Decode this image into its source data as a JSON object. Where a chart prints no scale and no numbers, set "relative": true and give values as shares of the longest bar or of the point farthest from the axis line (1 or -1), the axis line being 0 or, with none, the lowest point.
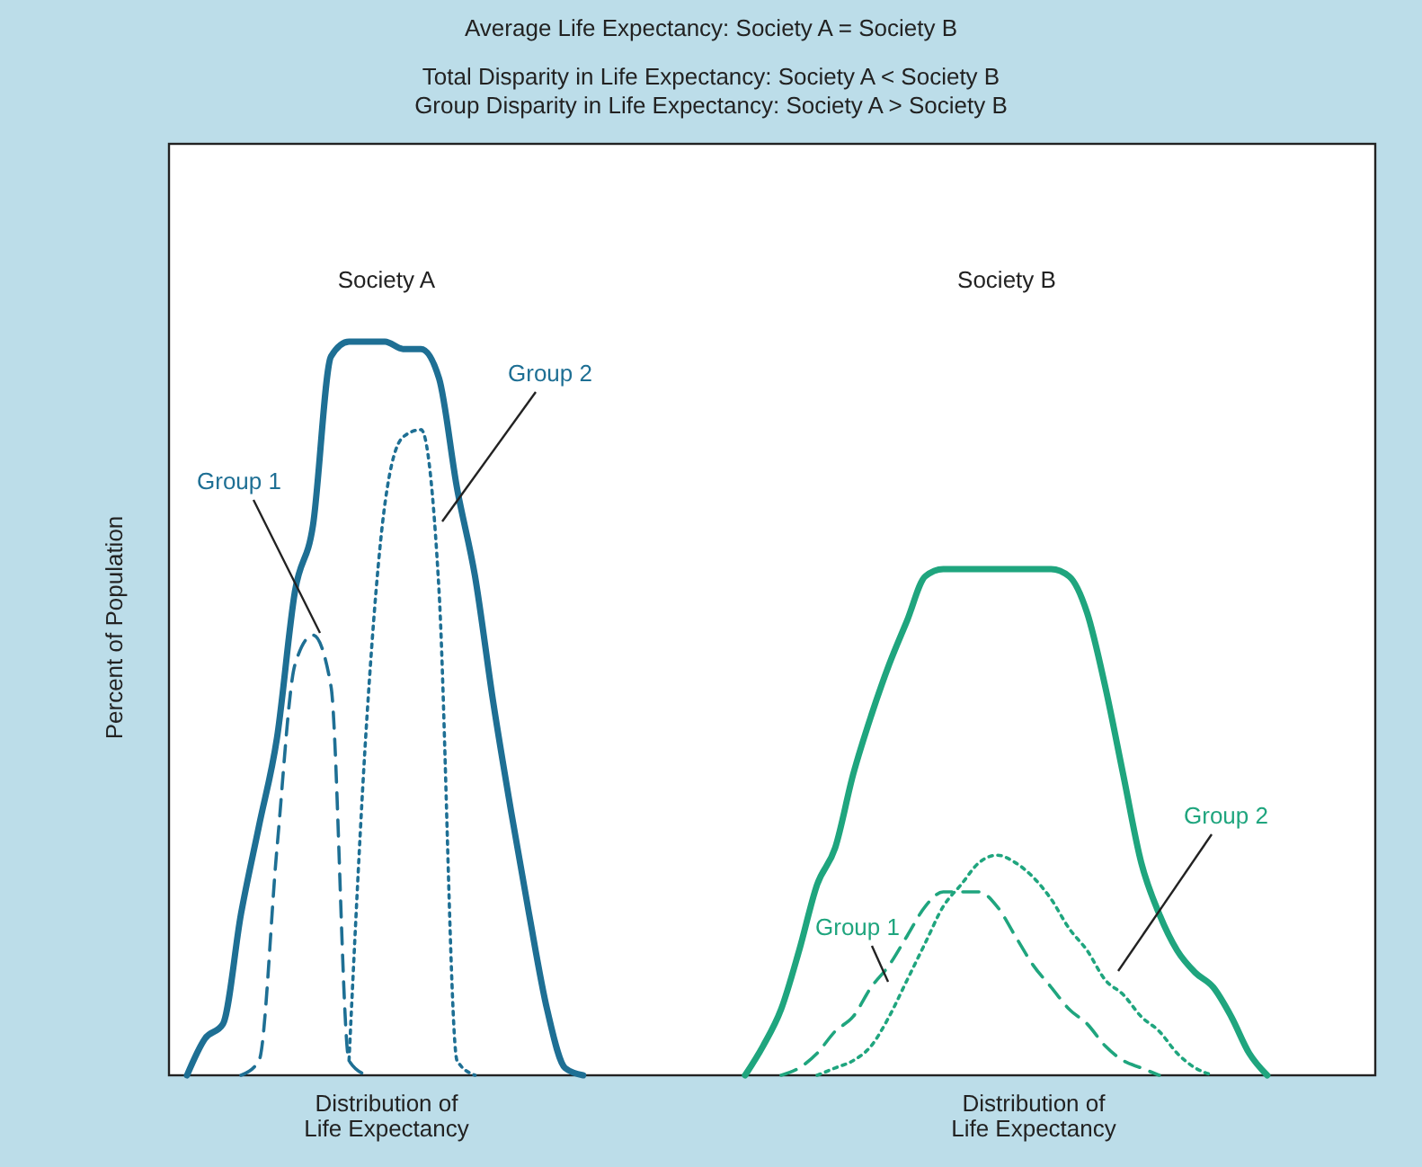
{
  "chart_data": {
    "type": "line",
    "title": "Average Life Expectancy: Society A = Society B",
    "subtitle": "Total Disparity in Life Expectancy: Society A < Society B\nGroup Disparity in Life Expectancy: Society A > Society B",
    "xlabel": "Distribution of\nLife Expectancy",
    "ylabel": "Percent of Population",
    "annotations": [
      "Society A",
      "Society B"
    ],
    "relative": true,
    "categories": [
      null,
      null,
      null,
      null,
      null,
      null,
      null,
      null,
      null,
      null,
      null,
      null,
      null,
      null,
      null,
      null,
      null,
      null,
      null,
      null,
      null,
      null,
      null,
      null,
      null,
      null,
      null,
      null,
      null,
      null,
      null,
      null,
      null,
      null,
      null,
      null,
      null,
      null,
      null,
      null,
      null,
      null,
      null,
      null,
      null,
      null,
      null,
      null,
      null,
      null,
      null,
      null,
      null,
      null,
      null,
      null,
      null,
      null,
      null,
      null,
      null,
      null,
      null,
      null,
      null,
      null,
      null,
      null
    ],
    "series": [
      {
        "color": "#1e6f94",
        "line_style": "solid",
        "values": [
          null,
          0,
          0.05,
          0.07,
          0.22,
          0.34,
          0.46,
          0.66,
          0.75,
          0.98,
          1,
          1,
          1,
          0.99,
          0.99,
          0.95,
          0.8,
          0.68,
          0.51,
          0.36,
          0.22,
          0.09,
          0.01,
          0,
          null,
          null,
          null,
          null,
          null,
          null,
          null,
          null,
          null,
          null,
          null,
          null,
          null,
          null,
          null,
          null,
          null,
          null,
          null,
          null,
          null,
          null,
          null,
          null,
          null,
          null,
          null,
          null,
          null,
          null,
          null,
          null,
          null,
          null,
          null,
          null,
          null,
          null,
          null,
          null,
          null,
          null,
          null,
          null
        ]
      },
      {
        "name": "Group 1",
        "color": "#1e6f94",
        "line_style": "dashed",
        "values": [
          null,
          null,
          null,
          null,
          0,
          0.02,
          0.31,
          0.56,
          0.6,
          0.53,
          0.02,
          0,
          null,
          null,
          null,
          null,
          null,
          null,
          null,
          null,
          null,
          null,
          null,
          null,
          null,
          null,
          null,
          null,
          null,
          null,
          null,
          null,
          null,
          null,
          null,
          null,
          null,
          null,
          null,
          null,
          null,
          null,
          null,
          null,
          null,
          null,
          null,
          null,
          null,
          null,
          null,
          null,
          null,
          null,
          null,
          null,
          null,
          null,
          null,
          null,
          null,
          null,
          null,
          null,
          null,
          null,
          null,
          null
        ]
      },
      {
        "name": "Group 2",
        "color": "#1e6f94",
        "line_style": "dotted",
        "values": [
          null,
          null,
          null,
          null,
          null,
          null,
          null,
          null,
          null,
          null,
          0.02,
          0.49,
          0.78,
          0.87,
          0.88,
          0.66,
          0.02,
          0,
          null,
          null,
          null,
          null,
          null,
          null,
          null,
          null,
          null,
          null,
          null,
          null,
          null,
          null,
          null,
          null,
          null,
          null,
          null,
          null,
          null,
          null,
          null,
          null,
          null,
          null,
          null,
          null,
          null,
          null,
          null,
          null,
          null,
          null,
          null,
          null,
          null,
          null,
          null,
          null,
          null,
          null,
          null,
          null,
          null,
          null,
          null,
          null,
          null,
          null
        ]
      },
      {
        "color": "#1fa57e",
        "line_style": "solid",
        "values": [
          null,
          null,
          null,
          null,
          null,
          null,
          null,
          null,
          null,
          null,
          null,
          null,
          null,
          null,
          null,
          null,
          null,
          null,
          null,
          null,
          null,
          null,
          null,
          null,
          null,
          null,
          null,
          null,
          null,
          null,
          null,
          null,
          0,
          0.04,
          0.09,
          0.17,
          0.26,
          0.31,
          0.41,
          0.49,
          0.56,
          0.62,
          0.68,
          0.69,
          0.69,
          0.69,
          0.69,
          0.69,
          0.69,
          0.69,
          0.68,
          0.63,
          0.53,
          0.41,
          0.29,
          0.22,
          0.17,
          0.14,
          0.12,
          0.08,
          0.03,
          0,
          null,
          null,
          null,
          null,
          null,
          null
        ]
      },
      {
        "name": "Group 1",
        "color": "#1fa57e",
        "line_style": "dashed",
        "values": [
          null,
          null,
          null,
          null,
          null,
          null,
          null,
          null,
          null,
          null,
          null,
          null,
          null,
          null,
          null,
          null,
          null,
          null,
          null,
          null,
          null,
          null,
          null,
          null,
          null,
          null,
          null,
          null,
          null,
          null,
          null,
          null,
          null,
          null,
          0,
          0.01,
          0.03,
          0.06,
          0.08,
          0.12,
          0.15,
          0.19,
          0.23,
          0.25,
          0.25,
          0.25,
          0.23,
          0.19,
          0.15,
          0.12,
          0.09,
          0.07,
          0.04,
          0.02,
          0.01,
          0,
          null,
          null,
          null,
          null,
          null,
          null,
          null,
          null,
          null,
          null,
          null,
          null
        ]
      },
      {
        "name": "Group 2",
        "color": "#1fa57e",
        "line_style": "dotted",
        "values": [
          null,
          null,
          null,
          null,
          null,
          null,
          null,
          null,
          null,
          null,
          null,
          null,
          null,
          null,
          null,
          null,
          null,
          null,
          null,
          null,
          null,
          null,
          null,
          null,
          null,
          null,
          null,
          null,
          null,
          null,
          null,
          null,
          null,
          null,
          null,
          null,
          0,
          0.01,
          0.02,
          0.04,
          0.08,
          0.13,
          0.18,
          0.23,
          0.26,
          0.29,
          0.3,
          0.29,
          0.27,
          0.24,
          0.2,
          0.17,
          0.13,
          0.11,
          0.08,
          0.06,
          0.03,
          0.01,
          0,
          null,
          null,
          null,
          null,
          null,
          null,
          null,
          null,
          null
        ]
      }
    ]
  }
}
